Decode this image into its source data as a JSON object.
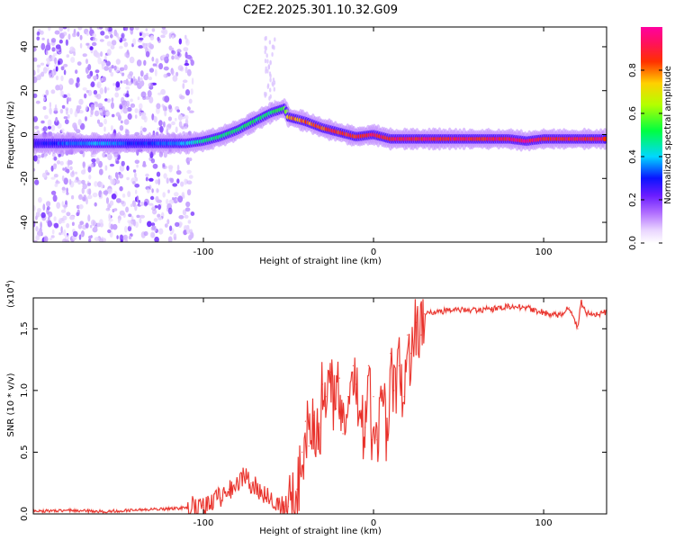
{
  "figure": {
    "title": "C2E2.2025.301.10.32.G09"
  },
  "chart_data": [
    {
      "type": "heatmap",
      "title": "C2E2.2025.301.10.32.G09",
      "xlabel": "Height of straight line (km)",
      "ylabel": "Frequency (Hz)",
      "xlim": [
        -200,
        137
      ],
      "ylim": [
        -49,
        49
      ],
      "x_ticks": [
        -100,
        0,
        100
      ],
      "x_tick_labels": [
        "-100",
        "0",
        "100"
      ],
      "y_ticks": [
        -40,
        -20,
        0,
        20,
        40
      ],
      "y_tick_labels": [
        "-40",
        "-20",
        "0",
        "20",
        "40"
      ],
      "colorbar": {
        "label": "Normalized spectral amplitude",
        "range": [
          0,
          1
        ],
        "ticks": [
          0,
          0.2,
          0.4,
          0.6,
          0.8
        ],
        "tick_labels": [
          "0.0",
          "0.2",
          "0.4",
          "0.6",
          "0.8"
        ],
        "colormap": "rainbow (white-purple-blue-cyan-green-yellow-red-magenta)"
      },
      "noise_region_km": [
        -200,
        -106
      ],
      "ridge": {
        "description": "Dominant Doppler frequency ridge vs straight-line height",
        "x": [
          -200,
          -180,
          -160,
          -140,
          -120,
          -110,
          -100,
          -90,
          -80,
          -70,
          -60,
          -52,
          -50,
          -45,
          -40,
          -30,
          -20,
          -10,
          0,
          10,
          20,
          40,
          60,
          80,
          90,
          100,
          120,
          137
        ],
        "frequency_hz": [
          -4,
          -4,
          -4,
          -4,
          -4,
          -4,
          -3,
          -1,
          2,
          6,
          10,
          12,
          8,
          7,
          6,
          3,
          1,
          -1,
          0,
          -2,
          -2,
          -2,
          -2,
          -2,
          -3,
          -2,
          -2,
          -2
        ],
        "amplitude": [
          0.25,
          0.35,
          0.4,
          0.3,
          0.35,
          0.4,
          0.5,
          0.5,
          0.5,
          0.5,
          0.5,
          0.55,
          0.75,
          0.8,
          0.82,
          0.85,
          0.88,
          0.88,
          0.9,
          0.9,
          0.9,
          0.92,
          0.9,
          0.92,
          0.95,
          0.9,
          0.9,
          0.9
        ]
      }
    },
    {
      "type": "line",
      "xlabel": "Height of straight line (km)",
      "ylabel": "SNR (10 * v/v)",
      "y_multiplier": "(x10",
      "y_multiplier_exp": "4",
      "y_multiplier_close": ")",
      "xlim": [
        -200,
        137
      ],
      "ylim": [
        0,
        1.75
      ],
      "x_ticks": [
        -100,
        0,
        100
      ],
      "x_tick_labels": [
        "-100",
        "0",
        "100"
      ],
      "y_ticks": [
        0,
        0.5,
        1.0,
        1.5
      ],
      "y_tick_labels": [
        "0.0",
        "0.5",
        "1.0",
        "1.5"
      ],
      "series": [
        {
          "name": "SNR",
          "color": "#e8302a",
          "x": [
            -200,
            -180,
            -160,
            -140,
            -120,
            -110,
            -100,
            -95,
            -90,
            -85,
            -80,
            -76,
            -72,
            -68,
            -64,
            -60,
            -56,
            -52,
            -50,
            -48,
            -45,
            -42,
            -40,
            -38,
            -35,
            -32,
            -30,
            -28,
            -25,
            -22,
            -20,
            -18,
            -15,
            -12,
            -10,
            -8,
            -5,
            -3,
            -1,
            0,
            2,
            5,
            8,
            10,
            12,
            15,
            18,
            20,
            22,
            25,
            28,
            30,
            35,
            40,
            45,
            50,
            60,
            70,
            80,
            90,
            100,
            110,
            115,
            120,
            122,
            125,
            130,
            137
          ],
          "y": [
            0.02,
            0.03,
            0.02,
            0.03,
            0.04,
            0.05,
            0.07,
            0.1,
            0.13,
            0.2,
            0.26,
            0.3,
            0.25,
            0.21,
            0.15,
            0.12,
            0.08,
            0.06,
            0.06,
            0.1,
            0.2,
            0.5,
            0.75,
            0.55,
            0.8,
            0.7,
            1.05,
            0.95,
            1.15,
            0.85,
            1.1,
            0.65,
            0.95,
            1.2,
            1.05,
            0.8,
            0.7,
            1.2,
            0.6,
            0.95,
            0.6,
            0.95,
            0.62,
            1.3,
            1.0,
            1.2,
            0.95,
            1.45,
            1.3,
            1.55,
            1.45,
            1.62,
            1.63,
            1.64,
            1.65,
            1.66,
            1.65,
            1.66,
            1.68,
            1.67,
            1.63,
            1.61,
            1.67,
            1.5,
            1.72,
            1.63,
            1.62,
            1.63
          ]
        }
      ]
    }
  ]
}
